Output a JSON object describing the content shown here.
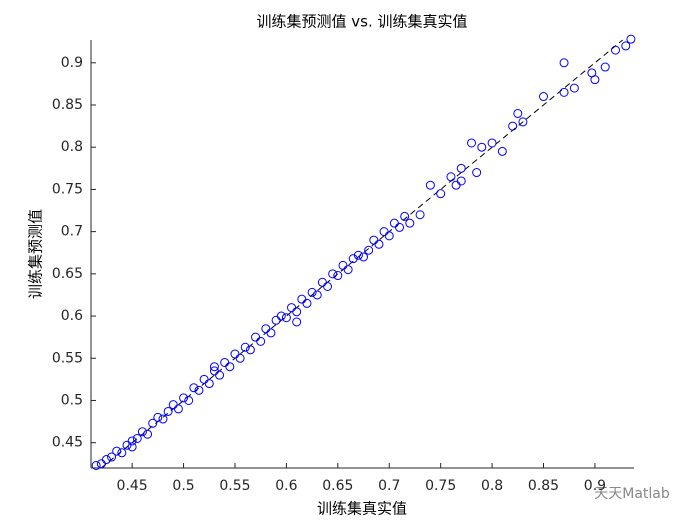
{
  "chart_data": {
    "type": "scatter",
    "title": "训练集预测值 vs. 训练集真实值",
    "x_label": "训练集真实值",
    "y_label": "训练集预测值",
    "watermark": "天天Matlab",
    "xlim": [
      0.41,
      0.938
    ],
    "ylim": [
      0.42,
      0.927
    ],
    "xticks": [
      0.45,
      0.5,
      0.55,
      0.6,
      0.65,
      0.7,
      0.75,
      0.8,
      0.85,
      0.9
    ],
    "yticks": [
      0.45,
      0.5,
      0.55,
      0.6,
      0.65,
      0.7,
      0.75,
      0.8,
      0.85,
      0.9
    ],
    "reference_line": "dashed",
    "series": [
      {
        "color": "#0000ff",
        "x": [
          0.415,
          0.42,
          0.425,
          0.43,
          0.435,
          0.44,
          0.445,
          0.45,
          0.455,
          0.46,
          0.465,
          0.47,
          0.475,
          0.48,
          0.485,
          0.49,
          0.495,
          0.5,
          0.505,
          0.51,
          0.515,
          0.52,
          0.525,
          0.53,
          0.535,
          0.54,
          0.545,
          0.55,
          0.555,
          0.56,
          0.565,
          0.57,
          0.575,
          0.58,
          0.585,
          0.59,
          0.595,
          0.6,
          0.605,
          0.61,
          0.615,
          0.62,
          0.625,
          0.63,
          0.635,
          0.64,
          0.645,
          0.65,
          0.655,
          0.66,
          0.665,
          0.67,
          0.675,
          0.68,
          0.685,
          0.69,
          0.695,
          0.7,
          0.705,
          0.71,
          0.715,
          0.72,
          0.73,
          0.74,
          0.75,
          0.76,
          0.765,
          0.77,
          0.78,
          0.785,
          0.79,
          0.8,
          0.81,
          0.82,
          0.825,
          0.83,
          0.85,
          0.87,
          0.88,
          0.9,
          0.91,
          0.92,
          0.93,
          0.935,
          0.61,
          0.45,
          0.53,
          0.77,
          0.87,
          0.897
        ],
        "values": [
          0.423,
          0.425,
          0.43,
          0.433,
          0.44,
          0.438,
          0.447,
          0.452,
          0.455,
          0.463,
          0.46,
          0.473,
          0.48,
          0.478,
          0.487,
          0.495,
          0.49,
          0.503,
          0.5,
          0.515,
          0.512,
          0.525,
          0.52,
          0.535,
          0.53,
          0.545,
          0.54,
          0.555,
          0.55,
          0.563,
          0.56,
          0.575,
          0.57,
          0.585,
          0.58,
          0.595,
          0.6,
          0.598,
          0.61,
          0.605,
          0.62,
          0.615,
          0.628,
          0.625,
          0.64,
          0.635,
          0.65,
          0.648,
          0.66,
          0.655,
          0.668,
          0.672,
          0.67,
          0.678,
          0.69,
          0.685,
          0.7,
          0.695,
          0.71,
          0.705,
          0.718,
          0.71,
          0.72,
          0.755,
          0.745,
          0.765,
          0.755,
          0.775,
          0.805,
          0.77,
          0.8,
          0.805,
          0.795,
          0.825,
          0.84,
          0.83,
          0.86,
          0.865,
          0.87,
          0.88,
          0.895,
          0.915,
          0.92,
          0.928,
          0.593,
          0.445,
          0.54,
          0.76,
          0.9,
          0.888
        ]
      }
    ]
  }
}
